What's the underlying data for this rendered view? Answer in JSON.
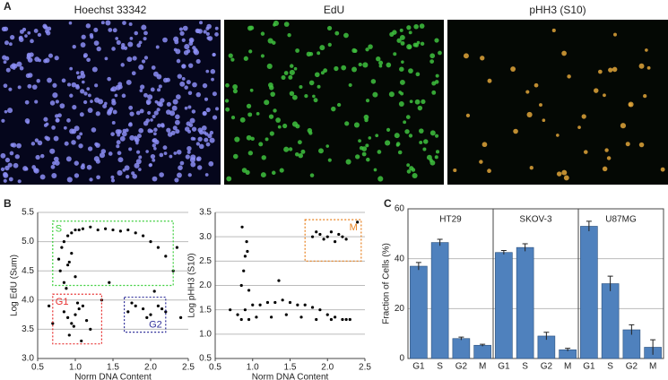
{
  "panels": {
    "a": "A",
    "b": "B",
    "c": "C"
  },
  "images": [
    {
      "title": "Hoechst 33342"
    },
    {
      "title": "EdU"
    },
    {
      "title": "pHH3 (S10)"
    }
  ],
  "chart_data": [
    {
      "type": "scatter",
      "xlabel": "Norm DNA Content",
      "ylabel": "Log EdU (Sum)",
      "color": "#000000",
      "grid": true,
      "xlim": [
        0.5,
        2.5
      ],
      "xticks": [
        0.5,
        {
          "value": 1,
          "label": "1.0"
        },
        1.5,
        {
          "value": 2,
          "label": "2.0"
        },
        2.5
      ],
      "ylim": [
        3,
        5.5
      ],
      "yticks": [
        {
          "value": 3,
          "label": "3.0"
        },
        3.5,
        {
          "value": 4,
          "label": "4.0"
        },
        4.5,
        {
          "value": 5,
          "label": "5.0"
        },
        5.5
      ],
      "x": [
        0.78,
        0.82,
        0.85,
        0.9,
        0.95,
        1.0,
        1.05,
        1.1,
        1.2,
        1.3,
        1.4,
        1.5,
        1.6,
        1.7,
        1.8,
        1.9,
        2.0,
        2.1,
        2.2,
        0.8,
        0.85,
        0.9,
        0.95,
        1.0,
        0.88,
        0.92,
        0.85,
        0.9,
        0.95,
        1.0,
        1.05,
        1.1,
        1.15,
        1.2,
        0.92,
        0.98,
        1.03,
        1.08,
        1.7,
        1.8,
        1.9,
        2.0,
        2.1,
        2.2,
        1.75,
        1.95,
        2.15,
        2.3,
        2.4,
        0.65,
        1.45,
        2.05,
        2.35,
        0.7,
        1.35
      ],
      "y": [
        4.7,
        4.9,
        5.0,
        5.1,
        5.15,
        5.2,
        5.2,
        5.22,
        5.25,
        5.2,
        5.22,
        5.2,
        5.18,
        5.2,
        5.15,
        5.1,
        5.0,
        4.9,
        4.75,
        4.5,
        4.3,
        4.6,
        4.8,
        4.4,
        4.2,
        4.65,
        3.8,
        3.7,
        3.6,
        3.75,
        3.85,
        3.9,
        3.65,
        3.5,
        3.4,
        3.55,
        3.95,
        3.3,
        3.8,
        3.9,
        3.85,
        3.75,
        3.9,
        3.8,
        3.95,
        3.7,
        3.85,
        4.5,
        3.7,
        3.9,
        4.3,
        4.15,
        4.9,
        3.6,
        4.0
      ],
      "regions": [
        {
          "label": "S",
          "color": "#3ccf3c",
          "x": [
            0.7,
            2.3
          ],
          "y": [
            4.25,
            5.35
          ],
          "label_pos": "top-left"
        },
        {
          "label": "G1",
          "color": "#e83030",
          "x": [
            0.7,
            1.35
          ],
          "y": [
            3.25,
            4.1
          ],
          "label_pos": "top-left"
        },
        {
          "label": "G2",
          "color": "#30309a",
          "x": [
            1.65,
            2.2
          ],
          "y": [
            3.45,
            4.05
          ],
          "label_pos": "bottom-right"
        }
      ]
    },
    {
      "type": "scatter",
      "xlabel": "Norm DNA Content",
      "ylabel": "Log pHH3 (S10)",
      "color": "#000000",
      "grid": true,
      "xlim": [
        0.5,
        2.5
      ],
      "xticks": [
        0.5,
        {
          "value": 1,
          "label": "1.0"
        },
        1.5,
        {
          "value": 2,
          "label": "2.0"
        },
        2.5
      ],
      "ylim": [
        0.5,
        3.5
      ],
      "yticks": [
        0.5,
        {
          "value": 1,
          "label": "1.0"
        },
        1.5,
        {
          "value": 2,
          "label": "2.0"
        },
        2.5,
        {
          "value": 3,
          "label": "3.0"
        },
        3.5
      ],
      "x": [
        0.8,
        0.9,
        1.0,
        1.1,
        1.2,
        1.3,
        1.4,
        1.5,
        1.6,
        1.7,
        1.8,
        1.9,
        2.0,
        2.1,
        2.2,
        2.3,
        0.85,
        0.95,
        1.05,
        1.25,
        1.45,
        1.65,
        1.85,
        2.05,
        2.25,
        0.85,
        0.88,
        0.9,
        0.92,
        0.86,
        0.93,
        0.95,
        1.8,
        1.85,
        1.9,
        1.95,
        2.0,
        2.05,
        2.1,
        2.15,
        2.2,
        2.25,
        2.4,
        1.35,
        0.7
      ],
      "y": [
        1.4,
        1.5,
        1.6,
        1.6,
        1.65,
        1.65,
        1.7,
        1.65,
        1.6,
        1.6,
        1.55,
        1.5,
        1.4,
        1.35,
        1.3,
        1.3,
        1.3,
        1.3,
        1.35,
        1.35,
        1.4,
        1.35,
        1.3,
        1.3,
        1.3,
        2.0,
        2.3,
        2.6,
        2.9,
        3.2,
        2.7,
        1.9,
        3.0,
        3.1,
        3.05,
        2.95,
        3.0,
        3.1,
        2.9,
        3.05,
        3.0,
        2.95,
        3.3,
        2.1,
        1.5
      ],
      "regions": [
        {
          "label": "M",
          "color": "#e8801e",
          "x": [
            1.7,
            2.45
          ],
          "y": [
            2.5,
            3.35
          ],
          "label_pos": "top-right"
        }
      ]
    },
    {
      "type": "bar",
      "ylabel": "Fraction of Cells (%)",
      "color": "#4f81bd",
      "grid": true,
      "ylim": [
        0,
        60
      ],
      "yticks": [
        0,
        20,
        40,
        60
      ],
      "categories": [
        "G1",
        "S",
        "G2",
        "M"
      ],
      "facets": [
        {
          "title": "HT29",
          "values": [
            37,
            46.5,
            8,
            5.3
          ],
          "errors": [
            1.5,
            1.3,
            0.6,
            0.4
          ]
        },
        {
          "title": "SKOV-3",
          "values": [
            42.5,
            44.5,
            9,
            3.5
          ],
          "errors": [
            0.8,
            1.5,
            1.5,
            0.6
          ]
        },
        {
          "title": "U87MG",
          "values": [
            53,
            30,
            11.5,
            4.5
          ],
          "errors": [
            2,
            3,
            2,
            3
          ]
        }
      ]
    }
  ]
}
